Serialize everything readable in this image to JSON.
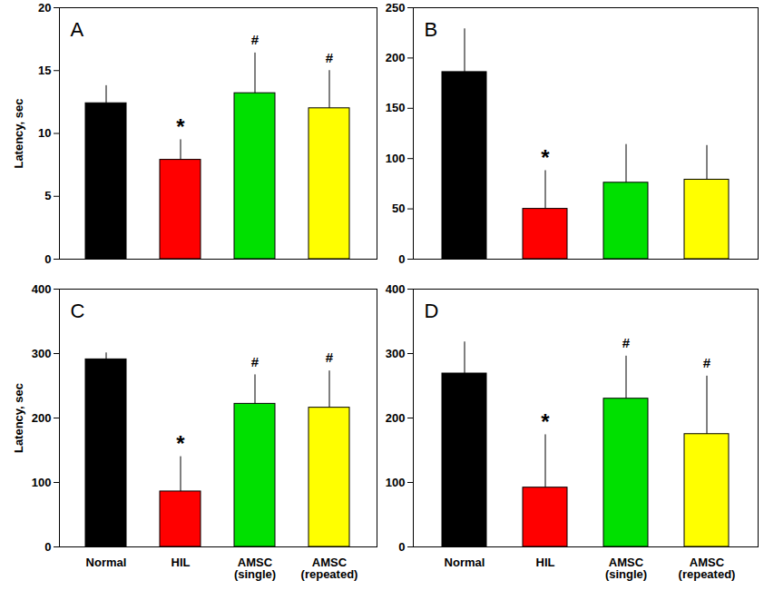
{
  "chart_data": [
    {
      "type": "bar",
      "title": "A",
      "y_label": "Latency, sec",
      "categories": [
        "Normal",
        "HIL",
        "AMSC\n(single)",
        "AMSC\n(repeated)"
      ],
      "values": [
        12.4,
        7.9,
        13.2,
        12.0
      ],
      "errors": [
        1.4,
        1.6,
        3.2,
        3.0
      ],
      "colors": [
        "#000000",
        "#ff0000",
        "#00e000",
        "#ffff00"
      ],
      "annotations": [
        {
          "x": "HIL",
          "text": "*"
        },
        {
          "x": "AMSC\n(single)",
          "text": "#"
        },
        {
          "x": "AMSC\n(repeated)",
          "text": "#"
        }
      ],
      "ylim": [
        0,
        20
      ],
      "yticks": [
        0,
        5,
        10,
        15,
        20
      ],
      "tick_labels": "y"
    },
    {
      "type": "bar",
      "title": "B",
      "categories": [
        "Normal",
        "HIL",
        "AMSC\n(single)",
        "AMSC\n(repeated)"
      ],
      "values": [
        186,
        50,
        76,
        79
      ],
      "errors": [
        43,
        38,
        38,
        34
      ],
      "colors": [
        "#000000",
        "#ff0000",
        "#00e000",
        "#ffff00"
      ],
      "annotations": [
        {
          "x": "HIL",
          "text": "*"
        }
      ],
      "ylim": [
        0,
        250
      ],
      "yticks": [
        0,
        50,
        100,
        150,
        200,
        250
      ],
      "tick_labels": "y"
    },
    {
      "type": "bar",
      "title": "C",
      "y_label": "Latency, sec",
      "categories": [
        "Normal",
        "HIL",
        "AMSC\n(single)",
        "AMSC\n(repeated)"
      ],
      "values": [
        291,
        86,
        222,
        216
      ],
      "errors": [
        10,
        54,
        45,
        57
      ],
      "colors": [
        "#000000",
        "#ff0000",
        "#00e000",
        "#ffff00"
      ],
      "annotations": [
        {
          "x": "HIL",
          "text": "*"
        },
        {
          "x": "AMSC\n(single)",
          "text": "#"
        },
        {
          "x": "AMSC\n(repeated)",
          "text": "#"
        }
      ],
      "ylim": [
        0,
        400
      ],
      "yticks": [
        0,
        100,
        200,
        300,
        400
      ]
    },
    {
      "type": "bar",
      "title": "D",
      "categories": [
        "Normal",
        "HIL",
        "AMSC\n(single)",
        "AMSC\n(repeated)"
      ],
      "values": [
        269,
        92,
        230,
        175
      ],
      "errors": [
        49,
        82,
        66,
        90
      ],
      "colors": [
        "#000000",
        "#ff0000",
        "#00e000",
        "#ffff00"
      ],
      "annotations": [
        {
          "x": "HIL",
          "text": "*"
        },
        {
          "x": "AMSC\n(single)",
          "text": "#"
        },
        {
          "x": "AMSC\n(repeated)",
          "text": "#"
        }
      ],
      "ylim": [
        0,
        400
      ],
      "yticks": [
        0,
        100,
        200,
        300,
        400
      ]
    }
  ]
}
